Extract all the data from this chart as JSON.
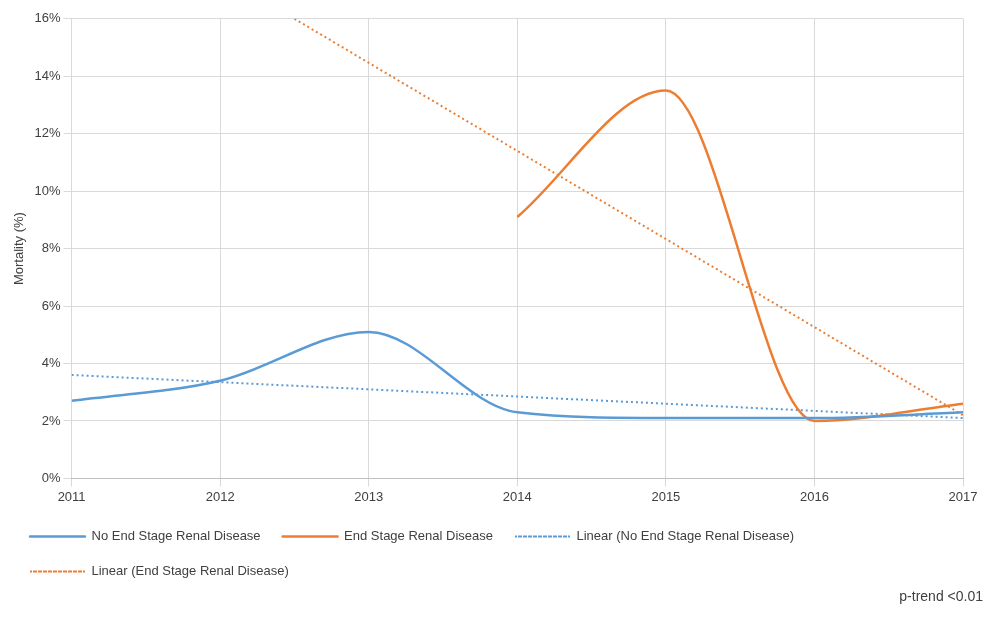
{
  "chart_data": {
    "type": "line",
    "ylabel": "Mortality (%)",
    "x": [
      2011,
      2012,
      2013,
      2014,
      2015,
      2016,
      2017
    ],
    "series": [
      {
        "name": "No End Stage Renal Disease",
        "color": "#5b9bd5",
        "values": [
          2.7,
          3.4,
          5.1,
          2.3,
          2.1,
          2.1,
          2.3
        ]
      },
      {
        "name": "End Stage Renal Disease",
        "color": "#ed7d31",
        "values": [
          null,
          null,
          null,
          9.1,
          13.5,
          2.0,
          2.6
        ]
      },
      {
        "name": "Linear (No End Stage Renal Disease)",
        "color": "#5b9bd5",
        "line_style": "dotted",
        "x": [
          2011,
          2017
        ],
        "values": [
          3.6,
          2.1
        ]
      },
      {
        "name": "Linear (End Stage Renal Disease)",
        "color": "#ed7d31",
        "line_style": "dotted",
        "x": [
          2012.5,
          2017
        ],
        "values": [
          16.0,
          2.2
        ]
      }
    ],
    "xlim": [
      2011,
      2017
    ],
    "xticks": [
      2011,
      2012,
      2013,
      2014,
      2015,
      2016,
      2017
    ],
    "ylim": [
      0,
      16
    ],
    "yticks": [
      {
        "value": 0,
        "label": "0%"
      },
      {
        "value": 2,
        "label": "2%"
      },
      {
        "value": 4,
        "label": "4%"
      },
      {
        "value": 6,
        "label": "6%"
      },
      {
        "value": 8,
        "label": "8%"
      },
      {
        "value": 10,
        "label": "10%"
      },
      {
        "value": 12,
        "label": "12%"
      },
      {
        "value": 14,
        "label": "14%"
      },
      {
        "value": 16,
        "label": "16%"
      }
    ],
    "grid": true,
    "legend": "bottom",
    "marker": "none",
    "annotations": [
      "p-trend <0.01"
    ]
  }
}
